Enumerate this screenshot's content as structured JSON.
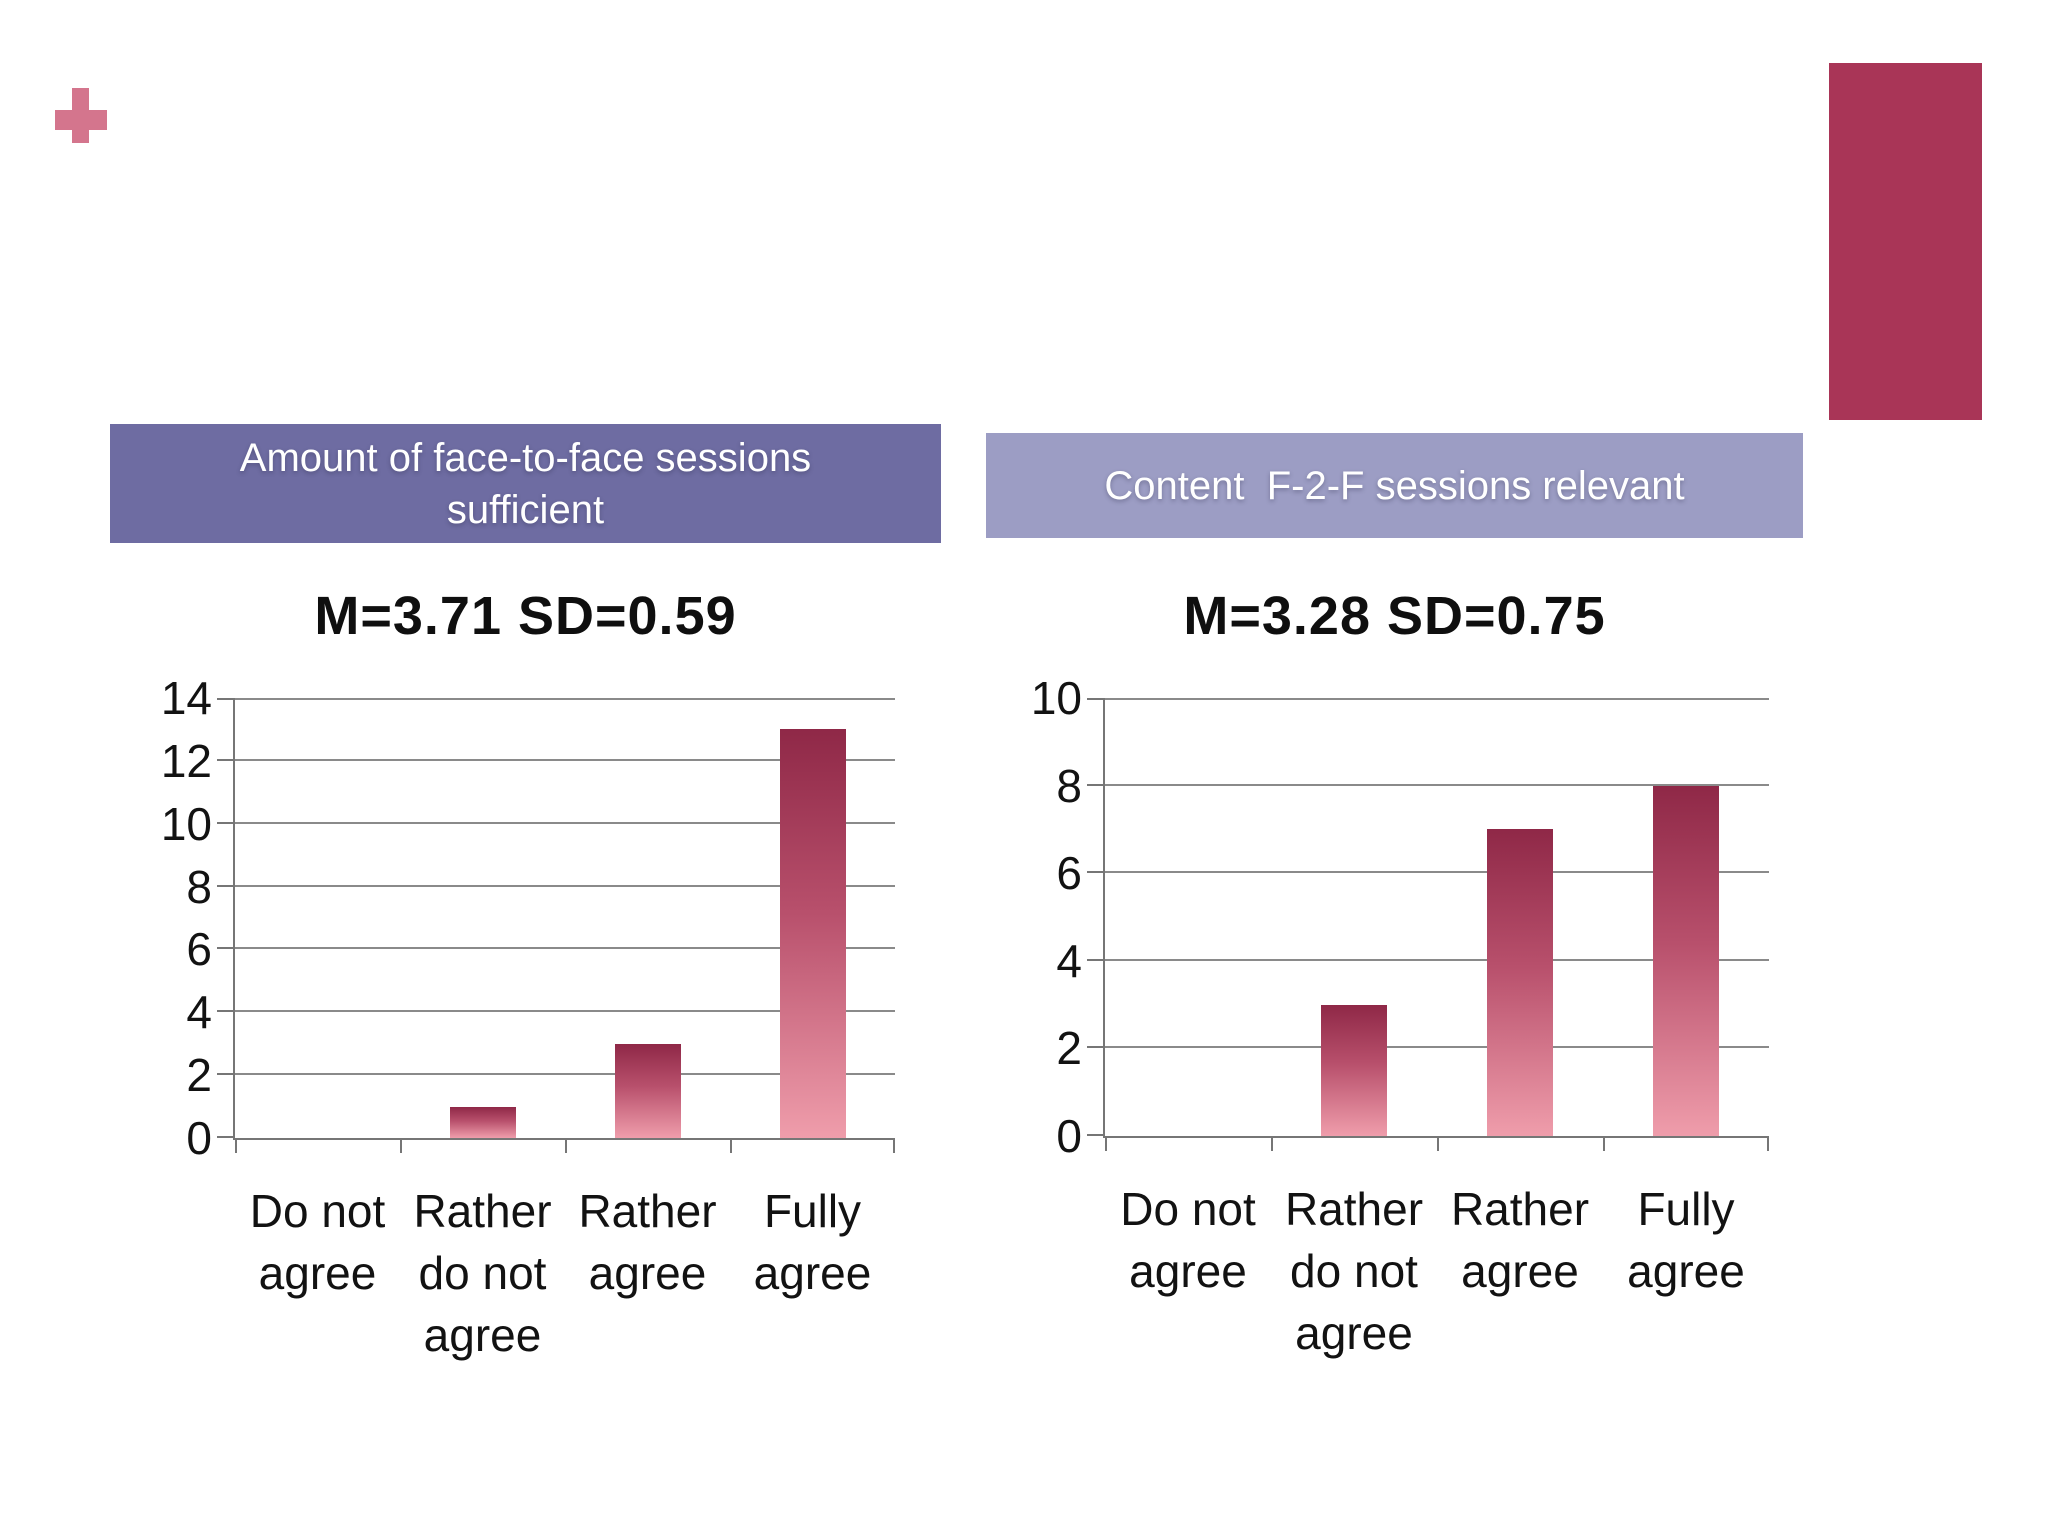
{
  "slide": {
    "plus_icon": "plus",
    "colors": {
      "background": "#ffffff",
      "plus_accent": "#d4758d",
      "corner_rect": "#a93557",
      "banner_left_bg": "#6e6ca2",
      "banner_right_bg": "#9c9dc4",
      "banner_text": "#ffffff",
      "bar_gradient_top": "#8f2847",
      "bar_gradient_mid": "#b8506c",
      "bar_gradient_bottom": "#ef9dab",
      "gridline": "#8a8a8a",
      "axis": "#767676",
      "text": "#0f0f0f"
    }
  },
  "chart_data": [
    {
      "type": "bar",
      "banner": "Amount of face-to-face sessions sufficient",
      "stats_label": "M=3.71 SD=0.59",
      "mean": 3.71,
      "sd": 0.59,
      "categories": [
        "Do not agree",
        "Rather do not agree",
        "Rather agree",
        "Fully agree"
      ],
      "values": [
        0,
        1,
        3,
        13
      ],
      "ylim": [
        0,
        14
      ],
      "ytick_step": 2,
      "grid": true,
      "legend": false,
      "xlabel": "",
      "ylabel": ""
    },
    {
      "type": "bar",
      "banner": "Content  F-2-F sessions relevant",
      "stats_label": "M=3.28 SD=0.75",
      "mean": 3.28,
      "sd": 0.75,
      "categories": [
        "Do not agree",
        "Rather do not agree",
        "Rather agree",
        "Fully agree"
      ],
      "values": [
        0,
        3,
        7,
        8
      ],
      "ylim": [
        0,
        10
      ],
      "ytick_step": 2,
      "grid": true,
      "legend": false,
      "xlabel": "",
      "ylabel": ""
    }
  ]
}
